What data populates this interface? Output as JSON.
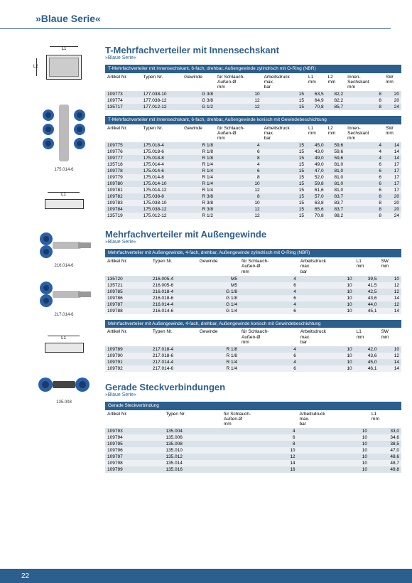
{
  "page": {
    "header": "»Blaue Serie«",
    "number": "22"
  },
  "colors": {
    "brand": "#2c5f8d",
    "row_odd": "#dbe3ea",
    "row_even": "#eceff3"
  },
  "section1": {
    "title": "T-Mehrfachverteiler mit Innensechskant",
    "sub": "»Blaue Serie«",
    "diagram_label": "175.014-6",
    "table1": {
      "caption": "T-Mehrfachverteiler mit Innensechskant, 6-fach, drehbar, Außengewinde zylindrisch mit O-Ring (NBR)",
      "headers": [
        "Artikel Nr.",
        "Typen Nr.",
        "Gewinde",
        "für Schlauch-Außen-Ø mm",
        "Arbeitsdruck max. bar",
        "L1 mm",
        "L2 mm",
        "Innen-Sechskant mm",
        "SW mm"
      ],
      "rows": [
        [
          "109773",
          "177.038-10",
          "G 3/8",
          "10",
          "15",
          "63,5",
          "82,2",
          "8",
          "20"
        ],
        [
          "109774",
          "177.038-12",
          "G 3/8",
          "12",
          "15",
          "64,9",
          "82,2",
          "8",
          "20"
        ],
        [
          "135717",
          "177.012-12",
          "G 1/2",
          "12",
          "15",
          "70,8",
          "85,7",
          "8",
          "24"
        ]
      ]
    },
    "table2": {
      "caption": "T-Mehrfachverteiler mit Innensechskant, 6-fach, drehbar, Außengewinde konisch mit Gewindebeschichtung",
      "headers": [
        "Artikel Nr.",
        "Typen Nr.",
        "Gewinde",
        "für Schlauch-Außen-Ø mm",
        "Arbeitsdruck max. bar",
        "L1 mm",
        "L2 mm",
        "Innen-Sechskant mm",
        "SW mm"
      ],
      "rows": [
        [
          "109775",
          "175.018-4",
          "R 1/8",
          "4",
          "15",
          "45,0",
          "59,6",
          "4",
          "14"
        ],
        [
          "109776",
          "175.018-6",
          "R 1/8",
          "6",
          "15",
          "43,0",
          "59,6",
          "4",
          "14"
        ],
        [
          "109777",
          "175.018-8",
          "R 1/8",
          "8",
          "15",
          "49,0",
          "59,6",
          "4",
          "14"
        ],
        [
          "135718",
          "175.014-4",
          "R 1/4",
          "4",
          "15",
          "49,0",
          "81,0",
          "6",
          "17"
        ],
        [
          "109778",
          "175.014-6",
          "R 1/4",
          "6",
          "15",
          "47,0",
          "81,0",
          "6",
          "17"
        ],
        [
          "109779",
          "175.014-8",
          "R 1/4",
          "8",
          "15",
          "52,0",
          "81,0",
          "6",
          "17"
        ],
        [
          "109780",
          "175.014-10",
          "R 1/4",
          "10",
          "15",
          "59,8",
          "81,0",
          "6",
          "17"
        ],
        [
          "109781",
          "175.014-12",
          "R 1/4",
          "12",
          "15",
          "61,6",
          "81,0",
          "6",
          "17"
        ],
        [
          "109782",
          "175.038-8",
          "R 3/8",
          "8",
          "15",
          "57,0",
          "83,7",
          "8",
          "20"
        ],
        [
          "109783",
          "175.038-10",
          "R 3/8",
          "10",
          "15",
          "63,8",
          "83,7",
          "8",
          "20"
        ],
        [
          "109784",
          "175.038-12",
          "R 3/8",
          "12",
          "15",
          "65,6",
          "83,7",
          "8",
          "20"
        ],
        [
          "135719",
          "175.012-12",
          "R 1/2",
          "12",
          "15",
          "70,8",
          "88,2",
          "8",
          "24"
        ]
      ]
    }
  },
  "section2": {
    "title": "Mehrfachverteiler mit Außengewinde",
    "sub": "»Blaue Serie«",
    "diagram_label_a": "216.014-6",
    "diagram_label_b": "217.014-6",
    "table1": {
      "caption": "Mehrfachverteiler mit Außengewinde, 4-fach, drehbar, Außengewinde zylindrisch mit O-Ring (NBR)",
      "headers": [
        "Artikel Nr.",
        "Typen Nr.",
        "Gewinde",
        "für Schlauch-Außen-Ø mm",
        "Arbeitsdruck max. bar",
        "L1 mm",
        "SW mm"
      ],
      "rows": [
        [
          "135720",
          "216.005-4",
          "M5",
          "4",
          "10",
          "39,5",
          "10"
        ],
        [
          "135721",
          "216.005-6",
          "M5",
          "6",
          "10",
          "41,5",
          "12"
        ],
        [
          "109785",
          "216.018-4",
          "G 1/8",
          "4",
          "10",
          "42,5",
          "12"
        ],
        [
          "109786",
          "216.018-6",
          "G 1/8",
          "6",
          "10",
          "43,6",
          "14"
        ],
        [
          "109787",
          "216.014-4",
          "G 1/4",
          "4",
          "10",
          "44,0",
          "12"
        ],
        [
          "109788",
          "216.014-6",
          "G 1/4",
          "6",
          "10",
          "45,1",
          "14"
        ]
      ]
    },
    "table2": {
      "caption": "Mehrfachverteiler mit Außengewinde, 4-fach, drehbar, Außengewinde konisch mit Gewindebeschichtung",
      "headers": [
        "Artikel Nr.",
        "Typen Nr.",
        "Gewinde",
        "für Schlauch-Außen-Ø mm",
        "Arbeitsdruck max. bar",
        "L1 mm",
        "SW mm"
      ],
      "rows": [
        [
          "109789",
          "217.018-4",
          "R 1/8",
          "4",
          "10",
          "42,0",
          "10"
        ],
        [
          "109790",
          "217.018-6",
          "R 1/8",
          "6",
          "10",
          "43,6",
          "12"
        ],
        [
          "109791",
          "217.014-4",
          "R 1/4",
          "4",
          "10",
          "45,0",
          "14"
        ],
        [
          "109792",
          "217.014-6",
          "R 1/4",
          "6",
          "10",
          "46,1",
          "14"
        ]
      ]
    }
  },
  "section3": {
    "title": "Gerade Steckverbindungen",
    "sub": "»Blaue Serie«",
    "diagram_label": "135.008",
    "table1": {
      "caption": "Gerade Steckverbindung",
      "headers": [
        "Artikel Nr.",
        "Typen Nr.",
        "für Schlauch-Außen-Ø mm",
        "Arbeitsdruck max. bar",
        "L1 mm"
      ],
      "rows": [
        [
          "109793",
          "135.004",
          "4",
          "10",
          "33,0"
        ],
        [
          "109794",
          "135.006",
          "6",
          "10",
          "34,6"
        ],
        [
          "109795",
          "135.008",
          "8",
          "10",
          "38,5"
        ],
        [
          "109796",
          "135.010",
          "10",
          "10",
          "47,0"
        ],
        [
          "109797",
          "135.012",
          "12",
          "10",
          "48,6"
        ],
        [
          "109798",
          "135.014",
          "14",
          "10",
          "48,7"
        ],
        [
          "109799",
          "135.016",
          "16",
          "10",
          "49,8"
        ]
      ]
    }
  }
}
